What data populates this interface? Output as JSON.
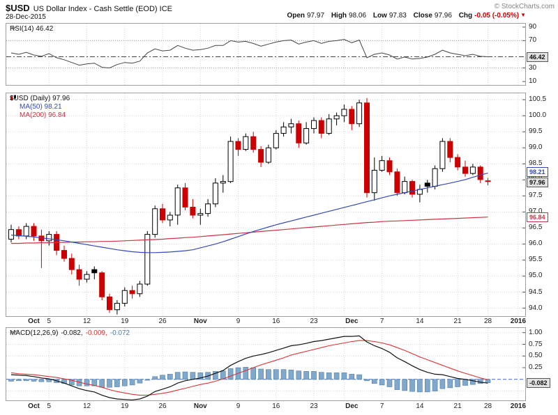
{
  "header": {
    "symbol": "$USD",
    "title": "US Dollar Index - Cash Settle (EOD) ICE",
    "date": "28-Dec-2015",
    "copyright": "© StockCharts.com",
    "quote": {
      "open_label": "Open",
      "open": "97.97",
      "high_label": "High",
      "high": "98.06",
      "low_label": "Low",
      "low": "97.83",
      "close_label": "Close",
      "close": "97.96",
      "chg_label": "Chg",
      "chg": "-0.05 (-0.05%)",
      "chg_arrow": "▼"
    }
  },
  "rsi_panel": {
    "legend": "RSI(14) 46.42",
    "current_value": "46.42",
    "ytick_labels": [
      "90",
      "70",
      "30",
      "10"
    ]
  },
  "main_panel": {
    "legend_symbol": "$USD (Daily) 97.96",
    "legend_ma50": "MA(50) 98.21",
    "legend_ma200": "MA(200) 96.84",
    "ma50_label": "98.21",
    "last_label": "97.96",
    "ma200_label": "96.84",
    "ytick_labels": [
      "100.5",
      "100.0",
      "99.5",
      "99.0",
      "98.5",
      "98.0",
      "97.5",
      "97.0",
      "96.5",
      "96.0",
      "95.5",
      "95.0",
      "94.5",
      "94.0"
    ]
  },
  "macd_panel": {
    "legend_name": "MACD(12,26,9)",
    "legend_macd_value": "-0.082,",
    "legend_signal_value": "-0.009,",
    "legend_hist_value": "-0.072",
    "current_value": "-0.082",
    "ytick_labels": [
      "1.00",
      "0.75",
      "0.50",
      "0.25"
    ]
  },
  "colors": {
    "up_candle": "#000000",
    "down_candle": "#cc0000",
    "ma50": "#3348bb",
    "ma200": "#cc3344",
    "rsi_line": "#444444",
    "macd_line": "#111111",
    "macd_signal": "#dd3333",
    "macd_hist_fill": "#7fa8cc",
    "macd_hist_stroke": "#4f7ca6",
    "zero_line": "#3366cc",
    "chg_negative": "#cc0000"
  },
  "chart_data": {
    "type": "candlestick",
    "title": "$USD US Dollar Index - Cash Settle (EOD) ICE, Daily, 28-Dec-2015",
    "dates": [
      "28-Sep",
      "29-Sep",
      "30-Sep",
      "1-Oct",
      "2-Oct",
      "5-Oct",
      "6-Oct",
      "7-Oct",
      "8-Oct",
      "9-Oct",
      "12-Oct",
      "13-Oct",
      "14-Oct",
      "15-Oct",
      "16-Oct",
      "19-Oct",
      "20-Oct",
      "21-Oct",
      "22-Oct",
      "23-Oct",
      "26-Oct",
      "27-Oct",
      "28-Oct",
      "29-Oct",
      "30-Oct",
      "2-Nov",
      "3-Nov",
      "4-Nov",
      "5-Nov",
      "6-Nov",
      "9-Nov",
      "10-Nov",
      "11-Nov",
      "12-Nov",
      "13-Nov",
      "16-Nov",
      "17-Nov",
      "18-Nov",
      "19-Nov",
      "20-Nov",
      "23-Nov",
      "24-Nov",
      "25-Nov",
      "27-Nov",
      "30-Nov",
      "1-Dec",
      "2-Dec",
      "3-Dec",
      "4-Dec",
      "7-Dec",
      "8-Dec",
      "9-Dec",
      "10-Dec",
      "11-Dec",
      "14-Dec",
      "15-Dec",
      "16-Dec",
      "17-Dec",
      "18-Dec",
      "21-Dec",
      "22-Dec",
      "23-Dec",
      "24-Dec",
      "28-Dec"
    ],
    "ohlc": [
      [
        96.15,
        96.6,
        96.05,
        96.45
      ],
      [
        96.45,
        96.55,
        96.15,
        96.25
      ],
      [
        96.25,
        96.65,
        96.15,
        96.55
      ],
      [
        96.55,
        96.65,
        96.1,
        96.25
      ],
      [
        96.25,
        96.45,
        95.25,
        96.1
      ],
      [
        96.1,
        96.4,
        95.95,
        96.3
      ],
      [
        96.3,
        96.4,
        95.65,
        95.8
      ],
      [
        95.8,
        95.95,
        95.45,
        95.55
      ],
      [
        95.55,
        95.7,
        95.05,
        95.2
      ],
      [
        95.2,
        95.35,
        94.7,
        94.9
      ],
      [
        94.9,
        95.15,
        94.8,
        95.05
      ],
      [
        95.2,
        95.3,
        94.9,
        95.1
      ],
      [
        95.1,
        95.15,
        94.25,
        94.35
      ],
      [
        94.35,
        94.45,
        93.85,
        93.95
      ],
      [
        93.95,
        94.25,
        93.8,
        94.15
      ],
      [
        94.15,
        94.65,
        94.05,
        94.55
      ],
      [
        94.55,
        94.7,
        94.3,
        94.45
      ],
      [
        94.45,
        94.85,
        94.35,
        94.75
      ],
      [
        94.75,
        96.4,
        94.7,
        96.3
      ],
      [
        96.3,
        97.2,
        96.2,
        97.1
      ],
      [
        97.1,
        97.25,
        96.65,
        96.75
      ],
      [
        96.75,
        97.0,
        96.55,
        96.9
      ],
      [
        96.9,
        97.85,
        96.6,
        97.75
      ],
      [
        97.75,
        97.9,
        97.05,
        97.15
      ],
      [
        97.15,
        97.4,
        96.8,
        96.9
      ],
      [
        96.9,
        97.1,
        96.6,
        96.95
      ],
      [
        96.95,
        97.4,
        96.85,
        97.25
      ],
      [
        97.25,
        98.05,
        97.15,
        97.9
      ],
      [
        97.9,
        98.15,
        97.6,
        97.95
      ],
      [
        97.95,
        99.35,
        97.9,
        99.2
      ],
      [
        99.2,
        99.3,
        98.75,
        98.95
      ],
      [
        98.95,
        99.45,
        98.9,
        99.35
      ],
      [
        99.35,
        99.5,
        98.85,
        98.95
      ],
      [
        98.95,
        99.05,
        98.4,
        98.55
      ],
      [
        98.55,
        99.1,
        98.5,
        99.0
      ],
      [
        99.0,
        99.55,
        98.95,
        99.45
      ],
      [
        99.45,
        99.8,
        99.35,
        99.65
      ],
      [
        99.65,
        99.9,
        99.45,
        99.75
      ],
      [
        99.75,
        99.85,
        99.0,
        99.15
      ],
      [
        99.15,
        99.8,
        99.1,
        99.6
      ],
      [
        99.6,
        99.95,
        99.45,
        99.85
      ],
      [
        99.85,
        99.95,
        99.3,
        99.45
      ],
      [
        99.45,
        100.05,
        99.4,
        99.9
      ],
      [
        99.9,
        100.1,
        99.7,
        100.0
      ],
      [
        100.0,
        100.35,
        99.8,
        100.2
      ],
      [
        100.2,
        100.3,
        99.55,
        99.75
      ],
      [
        99.75,
        100.5,
        99.65,
        100.4
      ],
      [
        100.4,
        100.55,
        97.45,
        97.6
      ],
      [
        97.6,
        98.7,
        97.35,
        98.3
      ],
      [
        98.3,
        98.75,
        98.25,
        98.6
      ],
      [
        98.6,
        98.7,
        98.15,
        98.25
      ],
      [
        98.25,
        98.35,
        97.5,
        97.6
      ],
      [
        97.6,
        98.1,
        97.55,
        97.95
      ],
      [
        97.95,
        98.0,
        97.45,
        97.55
      ],
      [
        97.55,
        97.85,
        97.3,
        97.7
      ],
      [
        97.9,
        98.0,
        97.6,
        97.8
      ],
      [
        97.8,
        98.45,
        97.7,
        98.35
      ],
      [
        98.35,
        99.3,
        98.25,
        99.2
      ],
      [
        99.2,
        99.3,
        98.55,
        98.7
      ],
      [
        98.7,
        98.8,
        98.3,
        98.4
      ],
      [
        98.4,
        98.6,
        98.1,
        98.2
      ],
      [
        98.2,
        98.5,
        98.15,
        98.4
      ],
      [
        98.4,
        98.45,
        97.9,
        98.01
      ],
      [
        97.97,
        98.06,
        97.83,
        97.96
      ]
    ],
    "ma50": [
      96.28,
      96.26,
      96.24,
      96.22,
      96.19,
      96.16,
      96.13,
      96.1,
      96.06,
      96.02,
      95.98,
      95.94,
      95.9,
      95.86,
      95.82,
      95.79,
      95.76,
      95.74,
      95.73,
      95.73,
      95.74,
      95.75,
      95.77,
      95.79,
      95.82,
      95.88,
      95.94,
      96.0,
      96.07,
      96.15,
      96.23,
      96.31,
      96.39,
      96.46,
      96.53,
      96.6,
      96.66,
      96.72,
      96.78,
      96.84,
      96.9,
      96.96,
      97.02,
      97.08,
      97.14,
      97.2,
      97.26,
      97.32,
      97.38,
      97.44,
      97.5,
      97.55,
      97.6,
      97.65,
      97.7,
      97.75,
      97.8,
      97.85,
      97.9,
      97.95,
      98.01,
      98.08,
      98.15,
      98.21
    ],
    "ma200": [
      96.02,
      96.02,
      96.03,
      96.03,
      96.04,
      96.04,
      96.05,
      96.05,
      96.06,
      96.06,
      96.07,
      96.07,
      96.08,
      96.08,
      96.09,
      96.1,
      96.11,
      96.12,
      96.13,
      96.14,
      96.15,
      96.17,
      96.18,
      96.2,
      96.21,
      96.23,
      96.25,
      96.27,
      96.29,
      96.31,
      96.33,
      96.35,
      96.37,
      96.39,
      96.41,
      96.43,
      96.45,
      96.47,
      96.49,
      96.51,
      96.53,
      96.55,
      96.57,
      96.59,
      96.61,
      96.63,
      96.65,
      96.67,
      96.68,
      96.7,
      96.71,
      96.72,
      96.73,
      96.74,
      96.75,
      96.76,
      96.77,
      96.78,
      96.79,
      96.8,
      96.81,
      96.82,
      96.83,
      96.84
    ],
    "rsi": [
      52,
      50,
      53,
      49,
      47,
      51,
      45,
      42,
      38,
      34,
      36,
      37,
      31,
      30,
      35,
      38,
      37,
      40,
      52,
      58,
      55,
      56,
      63,
      59,
      56,
      57,
      59,
      63,
      63,
      70,
      68,
      69,
      66,
      62,
      65,
      68,
      70,
      71,
      65,
      68,
      70,
      66,
      69,
      70,
      72,
      67,
      71,
      45,
      50,
      52,
      49,
      43,
      46,
      43,
      44,
      46,
      50,
      56,
      52,
      50,
      48,
      50,
      47,
      46.42
    ],
    "macd": [
      0.1,
      0.09,
      0.08,
      0.06,
      0.03,
      0.01,
      -0.03,
      -0.08,
      -0.14,
      -0.2,
      -0.24,
      -0.27,
      -0.34,
      -0.39,
      -0.42,
      -0.43,
      -0.44,
      -0.42,
      -0.36,
      -0.26,
      -0.21,
      -0.16,
      -0.08,
      -0.03,
      0.0,
      0.03,
      0.07,
      0.13,
      0.19,
      0.3,
      0.38,
      0.45,
      0.5,
      0.53,
      0.57,
      0.62,
      0.67,
      0.72,
      0.74,
      0.77,
      0.81,
      0.83,
      0.86,
      0.89,
      0.92,
      0.92,
      0.93,
      0.8,
      0.72,
      0.66,
      0.58,
      0.46,
      0.38,
      0.29,
      0.21,
      0.15,
      0.11,
      0.1,
      0.06,
      0.02,
      0.0,
      -0.03,
      -0.06,
      -0.082
    ],
    "macd_signal": [
      0.14,
      0.12,
      0.11,
      0.1,
      0.08,
      0.06,
      0.04,
      0.01,
      -0.02,
      -0.06,
      -0.1,
      -0.13,
      -0.17,
      -0.22,
      -0.26,
      -0.29,
      -0.32,
      -0.34,
      -0.34,
      -0.32,
      -0.3,
      -0.27,
      -0.23,
      -0.19,
      -0.15,
      -0.11,
      -0.08,
      -0.04,
      0.01,
      0.07,
      0.13,
      0.19,
      0.25,
      0.31,
      0.36,
      0.41,
      0.46,
      0.52,
      0.56,
      0.6,
      0.64,
      0.68,
      0.72,
      0.75,
      0.78,
      0.81,
      0.83,
      0.83,
      0.81,
      0.78,
      0.74,
      0.68,
      0.62,
      0.55,
      0.48,
      0.42,
      0.36,
      0.3,
      0.24,
      0.18,
      0.13,
      0.08,
      0.03,
      -0.009
    ],
    "x_ticks": [
      {
        "label": "Oct",
        "i": 3,
        "month": true
      },
      {
        "label": "5",
        "i": 5
      },
      {
        "label": "12",
        "i": 10
      },
      {
        "label": "19",
        "i": 15
      },
      {
        "label": "26",
        "i": 20
      },
      {
        "label": "Nov",
        "i": 25,
        "month": true
      },
      {
        "label": "9",
        "i": 30
      },
      {
        "label": "16",
        "i": 35
      },
      {
        "label": "23",
        "i": 40
      },
      {
        "label": "Dec",
        "i": 45,
        "month": true
      },
      {
        "label": "7",
        "i": 49
      },
      {
        "label": "14",
        "i": 54
      },
      {
        "label": "21",
        "i": 59
      },
      {
        "label": "28",
        "i": 63
      },
      {
        "label": "2016",
        "i": 67,
        "month": true
      }
    ],
    "grid_week_indices": [
      5,
      10,
      15,
      20,
      25,
      30,
      35,
      40,
      44,
      49,
      54,
      59,
      63,
      67
    ],
    "panels": {
      "rsi": {
        "ylim": [
          5,
          95
        ],
        "yticks": [
          90,
          70,
          30,
          10
        ],
        "bands": [
          70,
          30
        ],
        "current": 46.42
      },
      "price": {
        "ylim": [
          93.75,
          100.7
        ],
        "tick_step": 0.5,
        "last": 97.96,
        "ma50_last": 98.21,
        "ma200_last": 96.84
      },
      "macd": {
        "ylim": [
          -0.45,
          1.1
        ],
        "yticks": [
          1.0,
          0.75,
          0.5,
          0.25
        ],
        "grid_extra": [
          -0.25
        ],
        "macd_last": -0.082,
        "signal_last": -0.009,
        "hist_last": -0.072
      }
    }
  }
}
